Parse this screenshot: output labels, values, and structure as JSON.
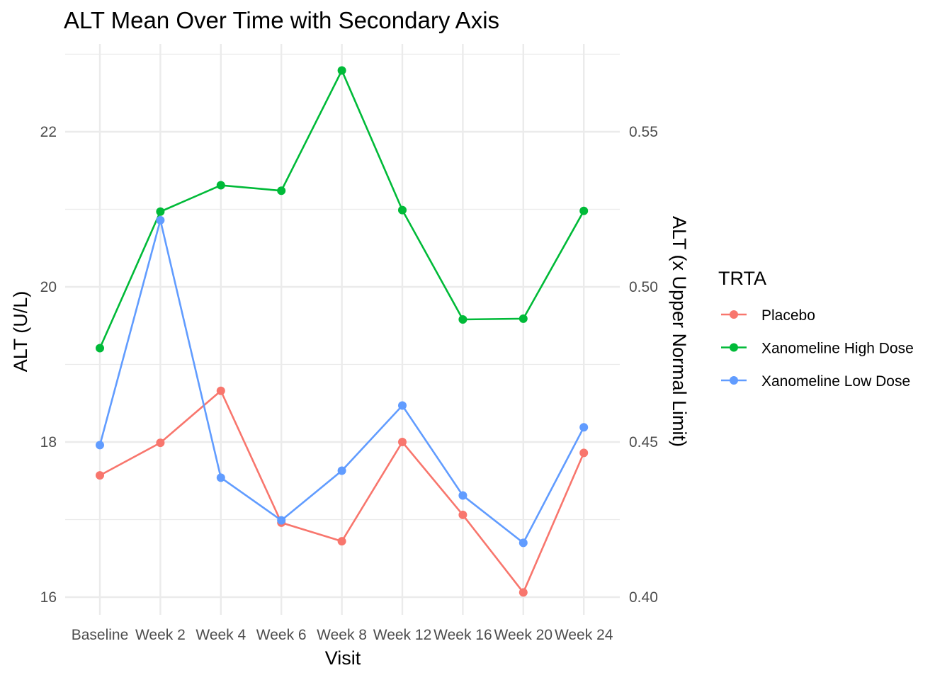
{
  "chart_data": {
    "type": "line",
    "title": "ALT Mean Over Time with Secondary Axis",
    "xlabel": "Visit",
    "ylabel": "ALT (U/L)",
    "y2label": "ALT (x Upper Normal Limit)",
    "categories": [
      "Baseline",
      "Week 2",
      "Week 4",
      "Week 6",
      "Week 8",
      "Week 12",
      "Week 16",
      "Week 20",
      "Week 24"
    ],
    "ylim": [
      15.75,
      23.0
    ],
    "yticks": [
      16,
      18,
      20,
      22
    ],
    "yminor": [
      17,
      19,
      21,
      23
    ],
    "y2_scale": 0.025,
    "y2ticks": [
      "0.40",
      "0.45",
      "0.50",
      "0.55"
    ],
    "grid": true,
    "legend": {
      "title": "TRTA",
      "position": "right"
    },
    "series": [
      {
        "name": "Placebo",
        "color": "#F8766D",
        "values": [
          17.57,
          17.99,
          18.66,
          16.96,
          16.72,
          18.0,
          17.06,
          16.06,
          17.86
        ]
      },
      {
        "name": "Xanomeline High Dose",
        "color": "#00BA38",
        "values": [
          19.21,
          20.97,
          21.31,
          21.24,
          22.79,
          20.99,
          19.58,
          19.59,
          20.98
        ]
      },
      {
        "name": "Xanomeline Low Dose",
        "color": "#619CFF",
        "values": [
          17.96,
          20.86,
          17.54,
          16.99,
          17.63,
          18.47,
          17.31,
          16.7,
          18.19
        ]
      }
    ]
  }
}
